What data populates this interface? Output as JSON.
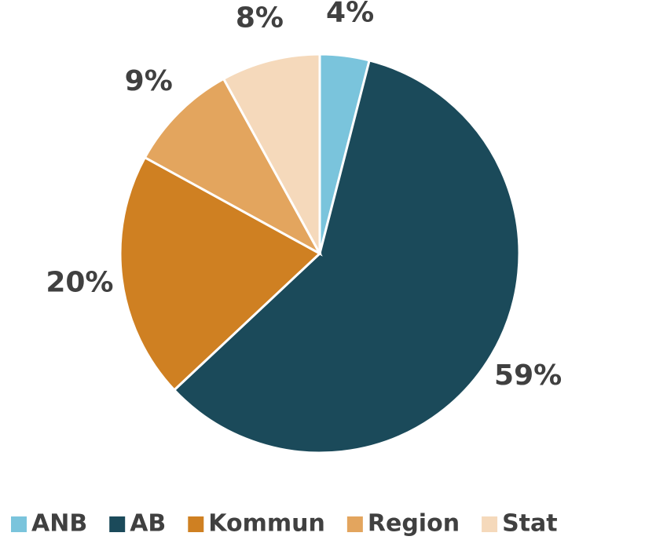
{
  "chart_data": {
    "type": "pie",
    "categories": [
      "ANB",
      "AB",
      "Kommun",
      "Region",
      "Stat"
    ],
    "values": [
      4,
      59,
      20,
      9,
      8
    ],
    "value_labels": [
      "4%",
      "59%",
      "20%",
      "9%",
      "8%"
    ],
    "colors": [
      "#7ac4dc",
      "#1b4a5a",
      "#cf8022",
      "#e3a55e",
      "#f5d9bb"
    ],
    "legend": "bottom"
  }
}
